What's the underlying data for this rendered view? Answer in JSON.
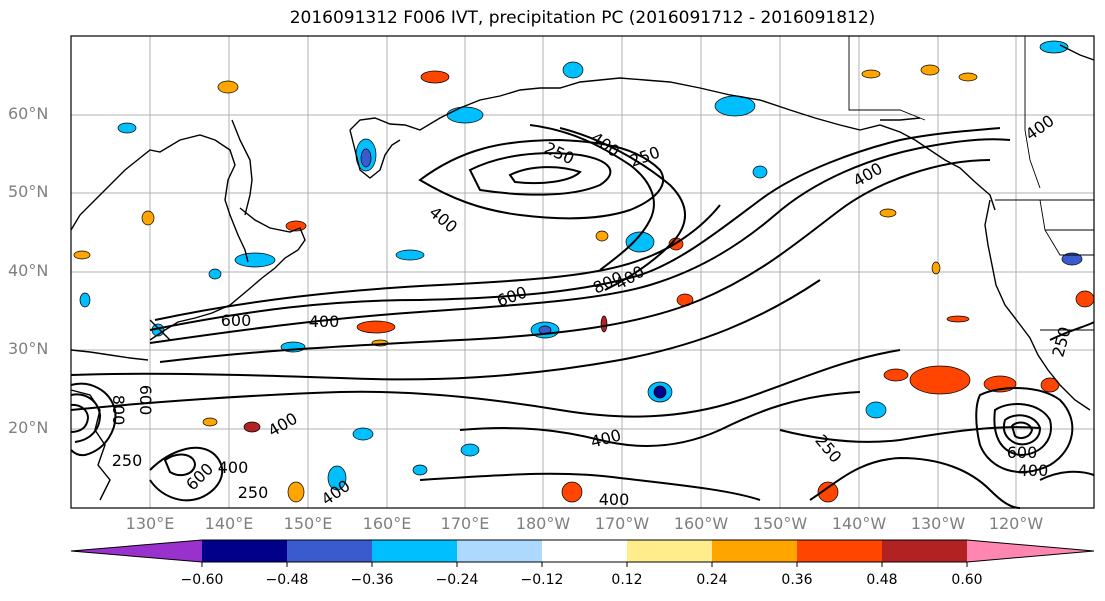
{
  "title": "2016091312 F006 IVT, precipitation PC (2016091712 - 2016091812)",
  "lat_labels": [
    "60°N",
    "50°N",
    "40°N",
    "30°N",
    "20°N"
  ],
  "lon_labels": [
    "130°E",
    "140°E",
    "150°E",
    "160°E",
    "170°E",
    "180°W",
    "170°W",
    "160°W",
    "150°W",
    "140°W",
    "130°W",
    "120°W"
  ],
  "colorbar": {
    "ticks": [
      "−0.60",
      "−0.48",
      "−0.36",
      "−0.24",
      "−0.12",
      "0.12",
      "0.24",
      "0.36",
      "0.48",
      "0.60"
    ],
    "colors": [
      "#9932cc",
      "#00008b",
      "#3a5bcd",
      "#00bfff",
      "#add8ff",
      "#ffffff",
      "#ffec8b",
      "#ffa500",
      "#ff4500",
      "#b22222",
      "#ff86b0"
    ]
  },
  "contour_labels": [
    "250",
    "400",
    "250",
    "400",
    "400",
    "600",
    "800",
    "400",
    "400",
    "600",
    "400",
    "400",
    "250",
    "400",
    "600",
    "250",
    "600",
    "800",
    "250",
    "400",
    "400",
    "600",
    "400",
    "250",
    "400",
    "600"
  ],
  "colors": {
    "grid": "#b0b0b0",
    "coast": "#000000",
    "contour": "#000000",
    "axis_label": "#7f7f7f"
  }
}
